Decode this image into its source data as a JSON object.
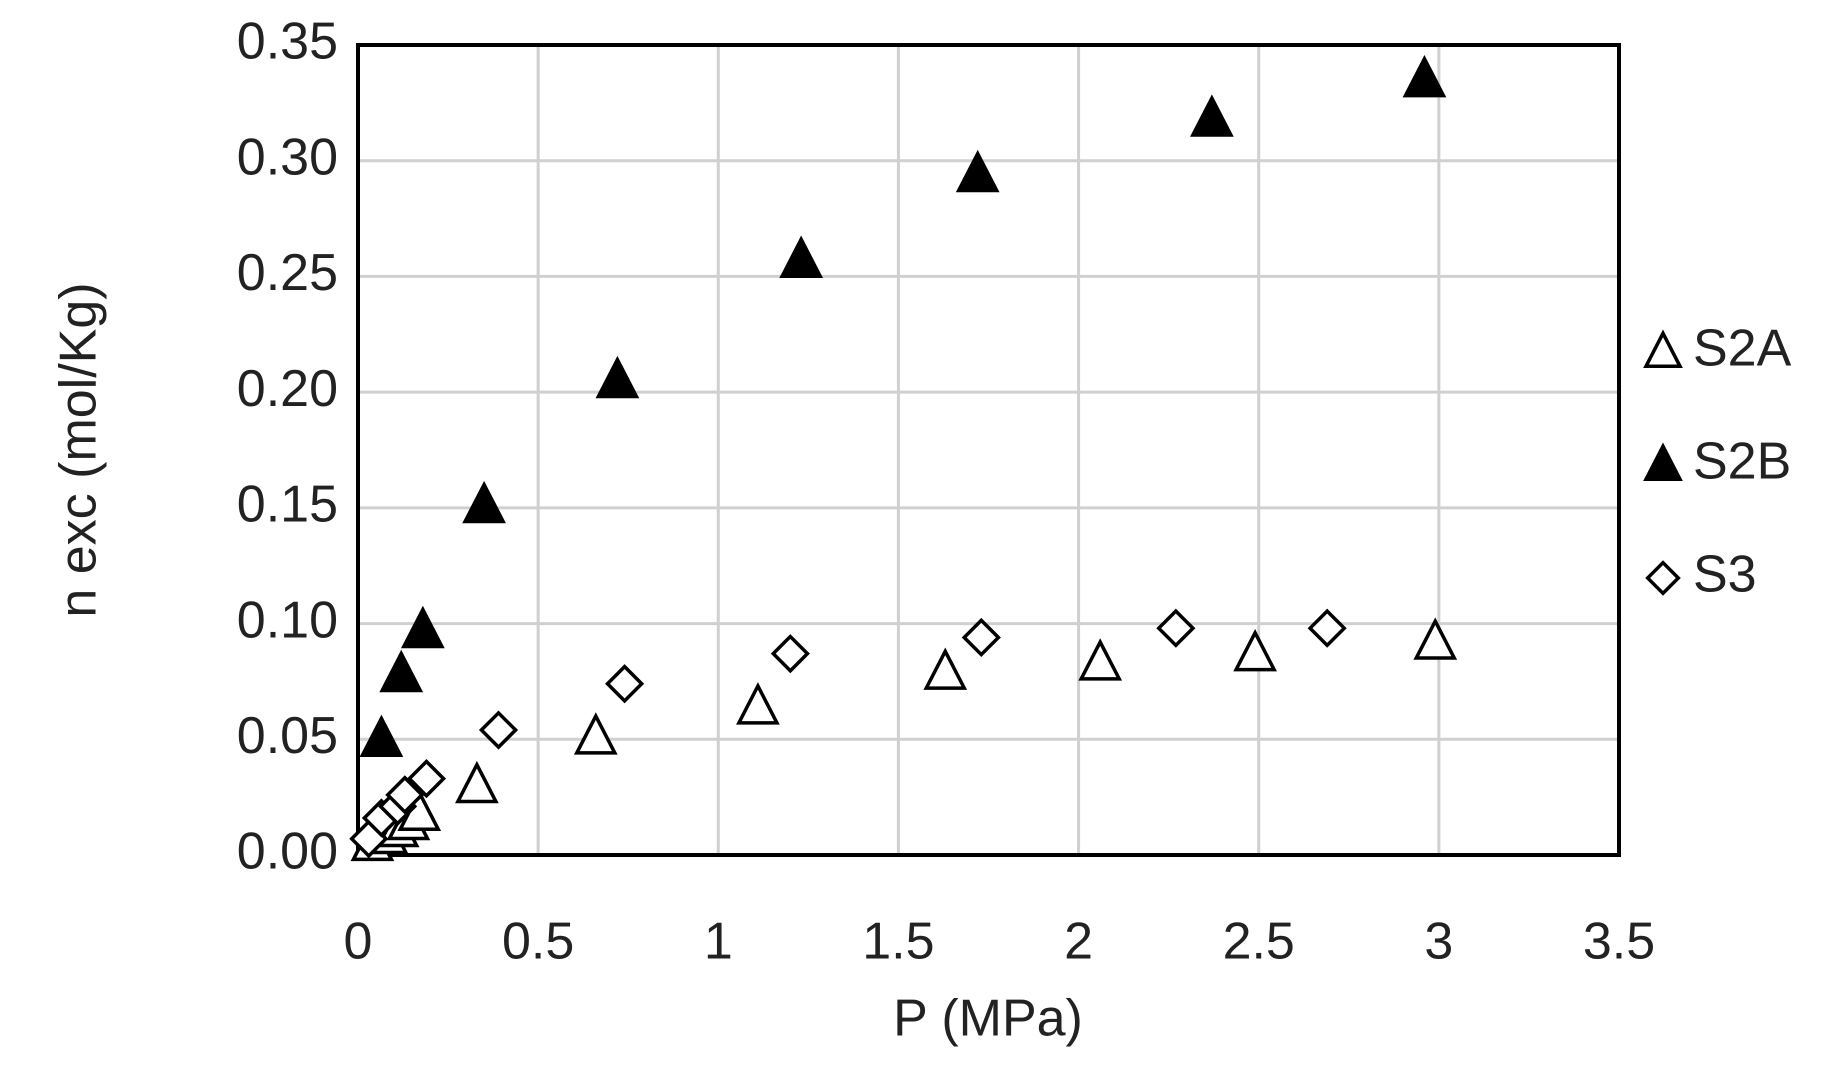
{
  "chart_data": {
    "type": "scatter",
    "x_label": "P (MPa)",
    "y_label": "n exc (mol/Kg)",
    "xlim": [
      0,
      3.5
    ],
    "xticks": [
      0,
      0.5,
      1,
      1.5,
      2,
      2.5,
      3,
      3.5
    ],
    "ylim": [
      0,
      0.35
    ],
    "yticks": [
      {
        "value": 0,
        "label": "0.00"
      },
      {
        "value": 0.05,
        "label": "0.05"
      },
      {
        "value": 0.1,
        "label": "0.10"
      },
      {
        "value": 0.15,
        "label": "0.15"
      },
      {
        "value": 0.2,
        "label": "0.20"
      },
      {
        "value": 0.25,
        "label": "0.25"
      },
      {
        "value": 0.3,
        "label": "0.30"
      },
      {
        "value": 0.35,
        "label": "0.35"
      }
    ],
    "grid": true,
    "legend": "right",
    "series": [
      {
        "name": "S2A",
        "color": "#000000",
        "marker": "triangle-open",
        "x": [
          0.04,
          0.08,
          0.11,
          0.14,
          0.17,
          0.33,
          0.66,
          1.11,
          1.63,
          2.06,
          2.49,
          2.99
        ],
        "values": [
          0.005,
          0.008,
          0.011,
          0.014,
          0.018,
          0.03,
          0.051,
          0.064,
          0.079,
          0.083,
          0.087,
          0.092
        ]
      },
      {
        "name": "S2B",
        "color": "#000000",
        "marker": "triangle-filled",
        "x": [
          0.065,
          0.12,
          0.18,
          0.35,
          0.72,
          1.23,
          1.72,
          2.37,
          2.96
        ],
        "values": [
          0.05,
          0.078,
          0.097,
          0.151,
          0.205,
          0.257,
          0.294,
          0.318,
          0.335
        ]
      },
      {
        "name": "S3",
        "color": "#000000",
        "marker": "diamond-open",
        "x": [
          0.03,
          0.065,
          0.11,
          0.13,
          0.19,
          0.39,
          0.74,
          1.2,
          1.73,
          2.27,
          2.69
        ],
        "values": [
          0.007,
          0.016,
          0.021,
          0.026,
          0.033,
          0.054,
          0.074,
          0.087,
          0.094,
          0.098,
          0.098
        ]
      }
    ]
  }
}
